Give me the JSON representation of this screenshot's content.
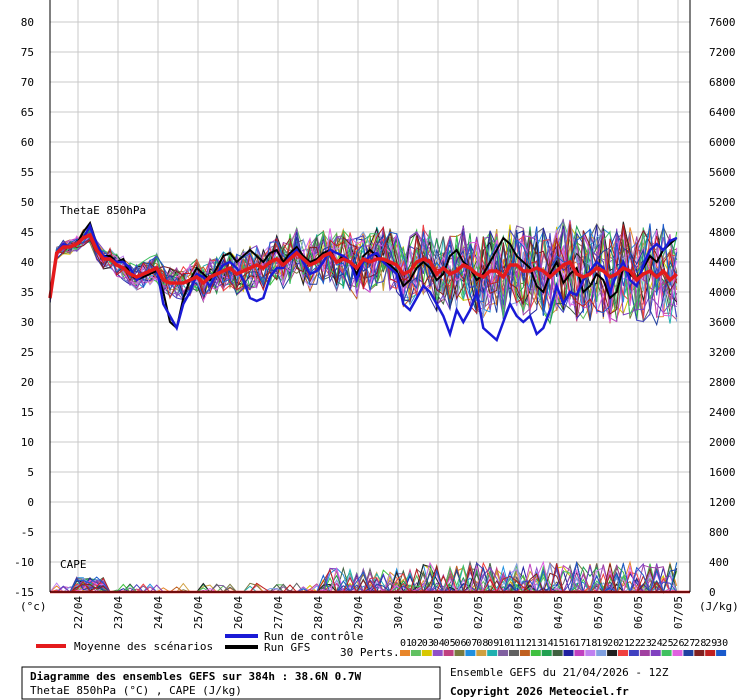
{
  "chart_data": {
    "type": "line",
    "title": "Diagramme des ensembles GEFS sur 384h : 38.6N 0.7W",
    "subtitle": "ThetaE 850hPa (°C) , CAPE (J/kg)",
    "run_info": "Ensemble GEFS du 21/04/2026 - 12Z",
    "copyright": "Copyright 2026 Meteociel.fr",
    "left_axis": {
      "unit_label": "(°c)",
      "ticks": [
        "80",
        "75",
        "70",
        "65",
        "60",
        "55",
        "50",
        "45",
        "40",
        "35",
        "30",
        "25",
        "20",
        "15",
        "10",
        "5",
        "0",
        "-5",
        "-10",
        "-15"
      ],
      "ylim": [
        -15,
        80
      ]
    },
    "right_axis": {
      "unit_label": "(J/kg)",
      "ticks": [
        "7600",
        "7200",
        "6800",
        "6400",
        "6000",
        "5600",
        "5200",
        "4800",
        "4400",
        "4000",
        "3600",
        "3200",
        "2800",
        "2400",
        "2000",
        "1600",
        "1200",
        "800",
        "400",
        "0"
      ],
      "ylim": [
        0,
        7600
      ]
    },
    "x_ticks": [
      "22/04",
      "23/04",
      "24/04",
      "25/04",
      "26/04",
      "27/04",
      "28/04",
      "29/04",
      "30/04",
      "01/05",
      "02/05",
      "03/05",
      "04/05",
      "05/05",
      "06/05",
      "07/05"
    ],
    "grid": true,
    "panel_labels": {
      "thetae": "ThetaE 850hPa",
      "cape": "CAPE"
    },
    "legend": {
      "mean": {
        "label": "Moyenne des scénarios",
        "color": "#e41a1c"
      },
      "control": {
        "label": "Run de contrôle",
        "color": "#1a1ad6"
      },
      "gfs": {
        "label": "Run GFS",
        "color": "#000000"
      },
      "perts_label": "30 Perts.",
      "members": [
        "01",
        "02",
        "03",
        "04",
        "05",
        "06",
        "07",
        "08",
        "09",
        "10",
        "11",
        "12",
        "13",
        "14",
        "15",
        "16",
        "17",
        "18",
        "19",
        "20",
        "21",
        "22",
        "23",
        "24",
        "25",
        "26",
        "27",
        "28",
        "29",
        "30"
      ],
      "member_colors": [
        "#e8862a",
        "#60c060",
        "#d8c800",
        "#9050c8",
        "#c04080",
        "#7a7a40",
        "#2090e0",
        "#d0a040",
        "#20b0b0",
        "#8060a0",
        "#606060",
        "#c06020",
        "#40c040",
        "#20a050",
        "#406040",
        "#2020a0",
        "#c040c0",
        "#c080f0",
        "#80a0e0",
        "#202020",
        "#f04040",
        "#4040c0",
        "#a040a0",
        "#8040c0",
        "#40c060",
        "#e060e0",
        "#2040a0",
        "#802020",
        "#c02020",
        "#1a5acc"
      ]
    },
    "series": [
      {
        "name": "Moyenne des scénarios",
        "role": "mean",
        "values": [
          34,
          41.5,
          42.5,
          42.5,
          43,
          44,
          44.5,
          42,
          40.5,
          40.5,
          39.5,
          39,
          38,
          37.5,
          38,
          38.5,
          39,
          37,
          36.5,
          36.5,
          36.5,
          37,
          37.5,
          36.5,
          37.5,
          38,
          38.5,
          39,
          38,
          38.5,
          39,
          39.5,
          39,
          40,
          40.5,
          39.5,
          40.5,
          41.5,
          40.5,
          39.5,
          40,
          41,
          41.5,
          40,
          40.5,
          40,
          39,
          40.5,
          40,
          40.5,
          40.5,
          40,
          39.5,
          38,
          38.5,
          40,
          40.5,
          40,
          38,
          39,
          38,
          38.5,
          39.5,
          39,
          38,
          37.5,
          38.5,
          38.5,
          37.5,
          39.5,
          39.5,
          38.5,
          38.5,
          39,
          38.5,
          37.5,
          38.5,
          39.5,
          40,
          38,
          37.5,
          38,
          39,
          38.5,
          37.5,
          38,
          39,
          38.5,
          37,
          38,
          38.5,
          37.5,
          38.5,
          37,
          38
        ]
      },
      {
        "name": "Run de contrôle",
        "role": "control",
        "values": [
          34,
          41.5,
          43,
          42.5,
          43,
          44,
          46,
          43,
          41,
          40.5,
          40,
          40,
          39,
          37,
          38,
          38.5,
          39,
          33,
          31,
          29,
          33,
          35,
          38,
          37.5,
          36,
          38,
          39.5,
          40,
          39,
          37,
          34,
          33.5,
          34,
          37.5,
          39,
          39,
          41,
          42,
          40,
          38,
          38.5,
          40,
          42,
          41.5,
          41,
          40,
          37,
          40,
          41,
          41.5,
          40,
          39,
          38,
          33,
          32,
          34,
          36,
          35,
          33,
          31,
          28,
          32,
          30,
          32,
          35,
          29,
          28,
          27,
          30,
          33,
          31,
          30,
          31,
          28,
          29,
          32,
          36,
          33,
          35,
          34.5,
          37,
          38.5,
          40,
          39,
          35,
          38,
          40,
          37,
          36,
          39.5,
          42,
          43,
          42,
          43.5,
          44
        ]
      },
      {
        "name": "Run GFS",
        "role": "gfs",
        "values": [
          34,
          41.5,
          42.5,
          42.5,
          43,
          45,
          46.5,
          43,
          41,
          41,
          40,
          40.5,
          38,
          37,
          37.5,
          38,
          38.5,
          35,
          30,
          29,
          34,
          37,
          39,
          38,
          37,
          39,
          41,
          41.5,
          40,
          41,
          42,
          41,
          40,
          41.5,
          42,
          40,
          41.5,
          42.5,
          41,
          40,
          40.5,
          41.5,
          42,
          40,
          41,
          40,
          38,
          41,
          42,
          41,
          40,
          39.5,
          38.5,
          36,
          37,
          39,
          40,
          39,
          37,
          38,
          41,
          42,
          40,
          39,
          37,
          38,
          40,
          42,
          44,
          43,
          41,
          40,
          39,
          36,
          35,
          38,
          40,
          36.5,
          38,
          39,
          35,
          36,
          38,
          37,
          34,
          35,
          39,
          38,
          37,
          39,
          41,
          40,
          42,
          43,
          44
        ]
      }
    ]
  }
}
